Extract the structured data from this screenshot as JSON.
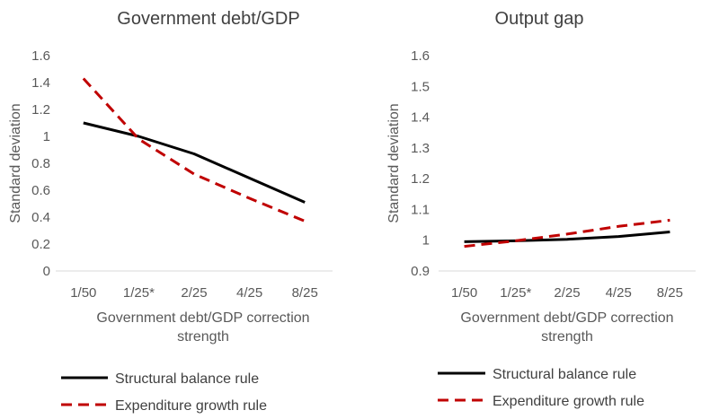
{
  "chart_data": [
    {
      "type": "line",
      "title": "Government debt/GDP",
      "xlabel": "Government debt/GDP correction strength",
      "ylabel": "Standard deviation",
      "categories": [
        "1/50",
        "1/25*",
        "2/25",
        "4/25",
        "8/25"
      ],
      "ylim": [
        0,
        1.6
      ],
      "yticks": [
        "0",
        "0.2",
        "0.4",
        "0.6",
        "0.8",
        "1",
        "1.2",
        "1.4",
        "1.6"
      ],
      "grid": false,
      "legend": "bottom",
      "series": [
        {
          "name": "Structural balance rule",
          "values": [
            1.1,
            1.0,
            0.87,
            0.69,
            0.51
          ],
          "color": "#000000",
          "dash": "solid"
        },
        {
          "name": "Expenditure growth rule",
          "values": [
            1.43,
            0.98,
            0.72,
            0.54,
            0.37
          ],
          "color": "#c00000",
          "dash": "dashed"
        }
      ]
    },
    {
      "type": "line",
      "title": "Output gap",
      "xlabel": "Government debt/GDP correction strength",
      "ylabel": "Standard deviation",
      "categories": [
        "1/50",
        "1/25*",
        "2/25",
        "4/25",
        "8/25"
      ],
      "ylim": [
        0.9,
        1.6
      ],
      "yticks": [
        "0.9",
        "1",
        "1.1",
        "1.2",
        "1.3",
        "1.4",
        "1.5",
        "1.6"
      ],
      "grid": false,
      "legend": "bottom",
      "series": [
        {
          "name": "Structural balance rule",
          "values": [
            0.995,
            0.998,
            1.003,
            1.012,
            1.027
          ],
          "color": "#000000",
          "dash": "solid"
        },
        {
          "name": "Expenditure growth rule",
          "values": [
            0.98,
            0.998,
            1.02,
            1.045,
            1.065
          ],
          "color": "#c00000",
          "dash": "dashed"
        }
      ]
    }
  ]
}
